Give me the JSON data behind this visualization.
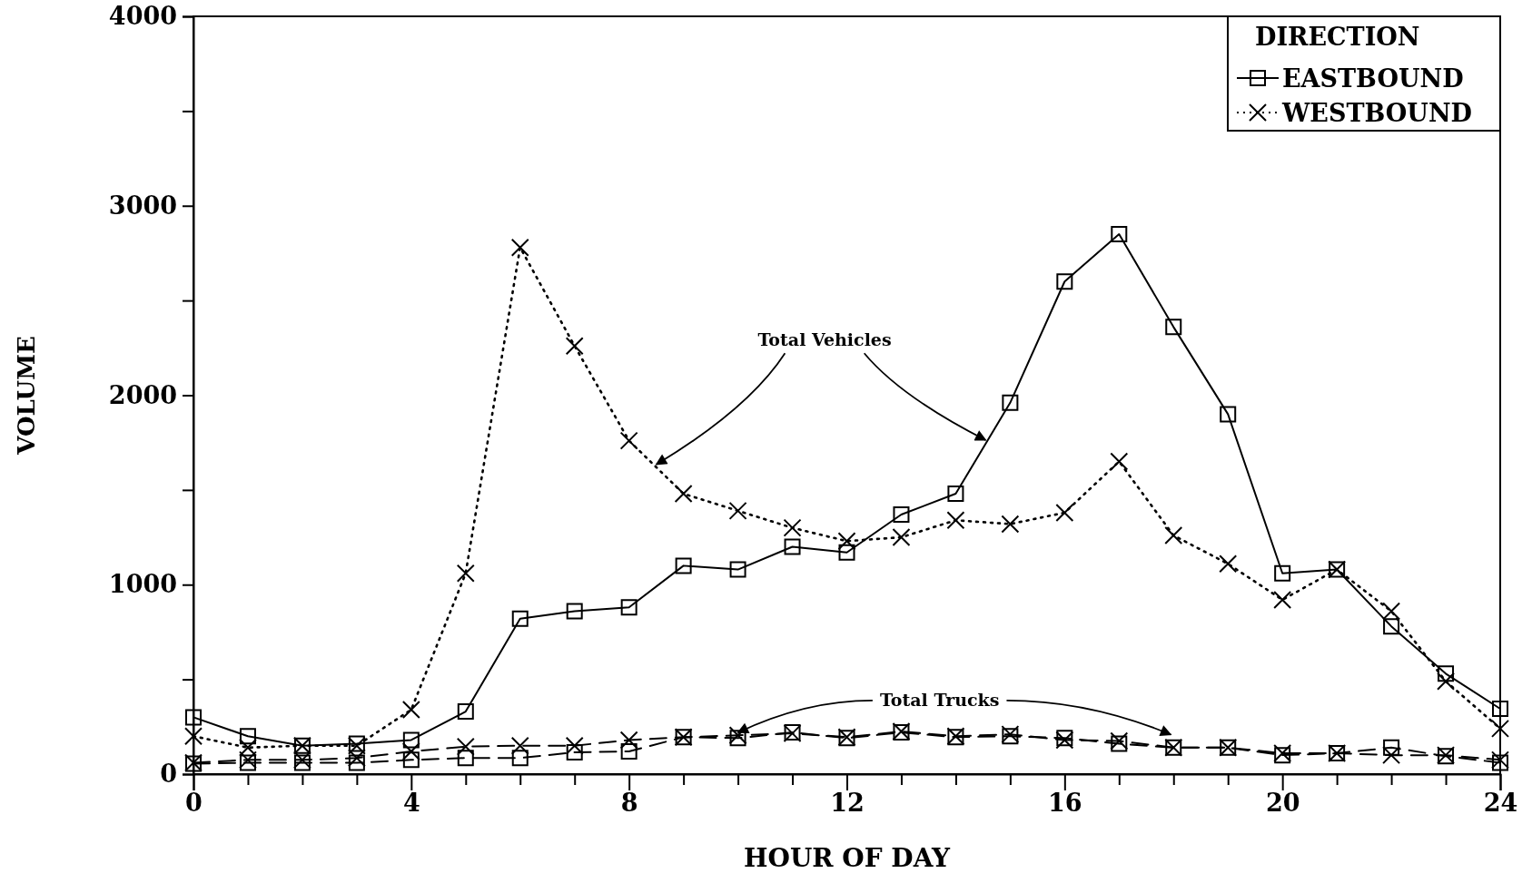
{
  "chart_data": {
    "type": "line",
    "xlabel": "HOUR OF DAY",
    "ylabel": "VOLUME",
    "legend_title": "DIRECTION",
    "legend": "top right",
    "grid": false,
    "x": [
      0,
      1,
      2,
      3,
      4,
      5,
      6,
      7,
      8,
      9,
      10,
      11,
      12,
      13,
      14,
      15,
      16,
      17,
      18,
      19,
      20,
      21,
      22,
      23,
      24
    ],
    "xlim": [
      0,
      24
    ],
    "xticks": [
      0,
      {
        "value": 1,
        "label": null
      },
      {
        "value": 2,
        "label": null
      },
      {
        "value": 3,
        "label": null
      },
      4,
      {
        "value": 5,
        "label": null
      },
      {
        "value": 6,
        "label": null
      },
      {
        "value": 7,
        "label": null
      },
      8,
      {
        "value": 9,
        "label": null
      },
      {
        "value": 10,
        "label": null
      },
      {
        "value": 11,
        "label": null
      },
      12,
      {
        "value": 13,
        "label": null
      },
      {
        "value": 14,
        "label": null
      },
      {
        "value": 15,
        "label": null
      },
      16,
      {
        "value": 17,
        "label": null
      },
      {
        "value": 18,
        "label": null
      },
      {
        "value": 19,
        "label": null
      },
      20,
      {
        "value": 21,
        "label": null
      },
      {
        "value": 22,
        "label": null
      },
      {
        "value": 23,
        "label": null
      },
      24
    ],
    "ylim": [
      0,
      4000
    ],
    "yticks": [
      0,
      {
        "value": 500,
        "label": null
      },
      1000,
      {
        "value": 1500,
        "label": null
      },
      2000,
      {
        "value": 2500,
        "label": null
      },
      3000,
      {
        "value": 3500,
        "label": null
      },
      4000
    ],
    "series": [
      {
        "name": "EASTBOUND",
        "color": "#000000",
        "marker": "square",
        "line_style": "solid",
        "values": [
          300,
          200,
          150,
          160,
          180,
          330,
          820,
          860,
          880,
          1100,
          1080,
          1200,
          1170,
          1370,
          1480,
          1960,
          2600,
          2850,
          2360,
          1900,
          1060,
          1080,
          780,
          530,
          345
        ]
      },
      {
        "name": "WESTBOUND",
        "color": "#000000",
        "marker": "cross",
        "line_style": "dotted",
        "values": [
          200,
          140,
          150,
          150,
          340,
          1060,
          2780,
          2260,
          1760,
          1480,
          1390,
          1300,
          1230,
          1250,
          1340,
          1320,
          1380,
          1650,
          1260,
          1110,
          920,
          1080,
          860,
          490,
          240
        ]
      },
      {
        "color": "#000000",
        "marker": "square",
        "line_style": "dashed",
        "values": [
          55,
          60,
          60,
          60,
          75,
          85,
          85,
          115,
          120,
          195,
          190,
          220,
          190,
          220,
          195,
          200,
          190,
          160,
          140,
          140,
          100,
          110,
          140,
          95,
          60
        ]
      },
      {
        "color": "#000000",
        "marker": "cross",
        "line_style": "dashed",
        "values": [
          60,
          75,
          75,
          85,
          120,
          145,
          150,
          150,
          180,
          195,
          205,
          215,
          195,
          225,
          200,
          210,
          180,
          175,
          140,
          140,
          110,
          110,
          100,
          100,
          75
        ]
      }
    ],
    "annotations": [
      {
        "text": "Total Vehicles",
        "x": 8.5,
        "y": 1620
      },
      {
        "text": "Total Trucks",
        "x": 10,
        "y": 205
      }
    ]
  }
}
